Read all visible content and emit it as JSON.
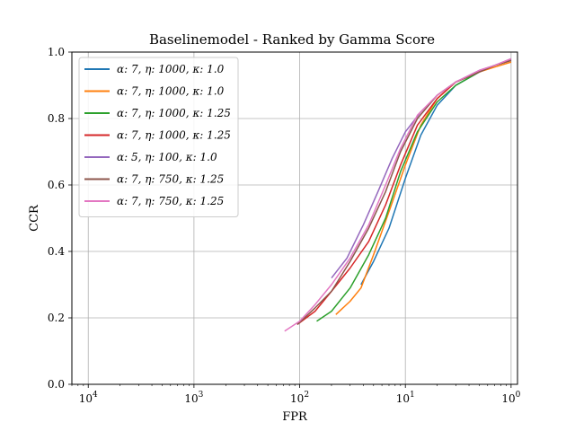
{
  "chart_data": {
    "type": "line",
    "title": "Baselinemodel - Ranked by Gamma Score",
    "xlabel": "FPR",
    "ylabel": "CCR",
    "x_scale": "log-reversed",
    "xlim": [
      7e-05,
      1.15
    ],
    "ylim": [
      0.0,
      1.0
    ],
    "grid": true,
    "legend_position": "upper-left",
    "x_ticks": [
      {
        "value": 0.0001,
        "base": "10",
        "exp": "4"
      },
      {
        "value": 0.001,
        "base": "10",
        "exp": "3"
      },
      {
        "value": 0.01,
        "base": "10",
        "exp": "2"
      },
      {
        "value": 0.1,
        "base": "10",
        "exp": "1"
      },
      {
        "value": 1,
        "base": "10",
        "exp": "0"
      }
    ],
    "y_ticks": [
      {
        "value": 0.0,
        "label": "0.0"
      },
      {
        "value": 0.2,
        "label": "0.2"
      },
      {
        "value": 0.4,
        "label": "0.4"
      },
      {
        "value": 0.6,
        "label": "0.6"
      },
      {
        "value": 0.8,
        "label": "0.8"
      },
      {
        "value": 1.0,
        "label": "1.0"
      }
    ],
    "series": [
      {
        "name": "α: 7,  η: 1000,  κ: 1.0",
        "color": "#1f77b4",
        "x": [
          0.038,
          0.05,
          0.07,
          0.1,
          0.14,
          0.2,
          0.3,
          0.5,
          0.7,
          1.0
        ],
        "y": [
          0.3,
          0.37,
          0.47,
          0.62,
          0.75,
          0.84,
          0.9,
          0.94,
          0.96,
          0.975
        ]
      },
      {
        "name": "α: 7,  η: 1000,  κ: 1.0",
        "color": "#ff7f0e",
        "x": [
          0.022,
          0.03,
          0.038,
          0.05,
          0.07,
          0.1,
          0.14,
          0.2,
          0.3,
          0.5,
          0.7,
          1.0
        ],
        "y": [
          0.21,
          0.25,
          0.29,
          0.39,
          0.52,
          0.66,
          0.78,
          0.86,
          0.91,
          0.94,
          0.955,
          0.97
        ]
      },
      {
        "name": "α: 7,  η: 1000,  κ: 1.25",
        "color": "#2ca02c",
        "x": [
          0.0145,
          0.02,
          0.03,
          0.045,
          0.065,
          0.09,
          0.13,
          0.2,
          0.3,
          0.5,
          0.7,
          1.0
        ],
        "y": [
          0.19,
          0.22,
          0.29,
          0.39,
          0.5,
          0.64,
          0.76,
          0.85,
          0.9,
          0.94,
          0.96,
          0.975
        ]
      },
      {
        "name": "α: 7,  η: 1000,  κ: 1.25",
        "color": "#d62728",
        "x": [
          0.0095,
          0.014,
          0.02,
          0.03,
          0.045,
          0.065,
          0.09,
          0.13,
          0.2,
          0.3,
          0.5,
          0.7,
          1.0
        ],
        "y": [
          0.18,
          0.22,
          0.28,
          0.35,
          0.43,
          0.54,
          0.66,
          0.78,
          0.86,
          0.91,
          0.94,
          0.96,
          0.975
        ]
      },
      {
        "name": "α: 5,  η: 100,  κ: 1.0",
        "color": "#9467bd",
        "x": [
          0.02,
          0.028,
          0.04,
          0.055,
          0.075,
          0.1,
          0.14,
          0.2,
          0.3,
          0.5,
          0.7,
          1.0
        ],
        "y": [
          0.32,
          0.38,
          0.48,
          0.58,
          0.68,
          0.76,
          0.82,
          0.87,
          0.91,
          0.945,
          0.96,
          0.98
        ]
      },
      {
        "name": "α: 7,  η: 750,  κ: 1.25",
        "color": "#8c564b",
        "x": [
          0.0095,
          0.014,
          0.02,
          0.03,
          0.045,
          0.065,
          0.09,
          0.13,
          0.2,
          0.3,
          0.5,
          0.7,
          1.0
        ],
        "y": [
          0.18,
          0.23,
          0.28,
          0.37,
          0.47,
          0.58,
          0.7,
          0.8,
          0.87,
          0.91,
          0.94,
          0.96,
          0.975
        ]
      },
      {
        "name": "α: 7,  η: 750,  κ: 1.25",
        "color": "#e377c2",
        "x": [
          0.0072,
          0.01,
          0.014,
          0.02,
          0.03,
          0.045,
          0.065,
          0.09,
          0.13,
          0.2,
          0.3,
          0.5,
          0.7,
          1.0
        ],
        "y": [
          0.16,
          0.19,
          0.24,
          0.3,
          0.38,
          0.48,
          0.6,
          0.71,
          0.81,
          0.87,
          0.91,
          0.945,
          0.96,
          0.98
        ]
      }
    ]
  }
}
